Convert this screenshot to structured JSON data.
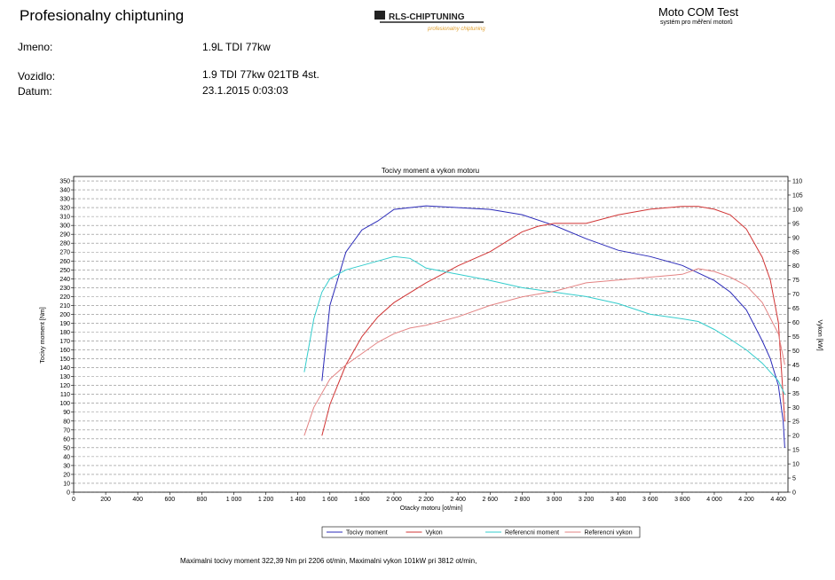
{
  "header": {
    "title": "Profesionalny chiptuning",
    "logo": "RLS-CHIPTUNING",
    "logo_sub": "profesionalny chiptuning",
    "brand": "Moto COM Test",
    "brand_sub": "systém pro měření motorů"
  },
  "fields": [
    {
      "label": "Jmeno:",
      "value": "1.9L TDI 77kw"
    },
    {
      "label": "Vozidlo:",
      "value": "1.9 TDI 77kw 021TB 4st."
    },
    {
      "label": "Datum:",
      "value": "23.1.2015 0:03:03"
    }
  ],
  "chart_data": {
    "type": "line",
    "title": "Tocivy moment a vykon motoru",
    "x_label": "Otacky motoru [ot/min]",
    "y_label": "Tocivy moment [Nm]",
    "y2_label": "Vykon [kW]",
    "xlim": [
      0,
      4460
    ],
    "xticks": [
      0,
      200,
      400,
      600,
      800,
      {
        "value": 1000,
        "label": "1 000"
      },
      {
        "value": 1200,
        "label": "1 200"
      },
      {
        "value": 1400,
        "label": "1 400"
      },
      {
        "value": 1600,
        "label": "1 600"
      },
      {
        "value": 1800,
        "label": "1 800"
      },
      {
        "value": 2000,
        "label": "2 000"
      },
      {
        "value": 2200,
        "label": "2 200"
      },
      {
        "value": 2400,
        "label": "2 400"
      },
      {
        "value": 2600,
        "label": "2 600"
      },
      {
        "value": 2800,
        "label": "2 800"
      },
      {
        "value": 3000,
        "label": "3 000"
      },
      {
        "value": 3200,
        "label": "3 200"
      },
      {
        "value": 3400,
        "label": "3 400"
      },
      {
        "value": 3600,
        "label": "3 600"
      },
      {
        "value": 3800,
        "label": "3 800"
      },
      {
        "value": 4000,
        "label": "4 000"
      },
      {
        "value": 4200,
        "label": "4 200"
      },
      {
        "value": 4400,
        "label": "4 400"
      }
    ],
    "ylim": [
      0,
      355
    ],
    "yticks": [
      0,
      10,
      20,
      30,
      40,
      50,
      60,
      70,
      80,
      90,
      100,
      110,
      120,
      130,
      140,
      150,
      160,
      170,
      180,
      190,
      200,
      210,
      220,
      230,
      240,
      250,
      260,
      270,
      280,
      290,
      300,
      310,
      320,
      330,
      340,
      350
    ],
    "y2lim": [
      0,
      111.57
    ],
    "y2ticks": [
      0,
      5,
      10,
      15,
      20,
      25,
      30,
      35,
      40,
      45,
      50,
      55,
      60,
      65,
      70,
      75,
      80,
      85,
      90,
      95,
      100,
      105,
      110
    ],
    "grid": true,
    "legend": "bottom",
    "series": [
      {
        "name": "Tocivy moment",
        "color": "#2a2ab8",
        "x": [
          1550,
          1600,
          1700,
          1800,
          1900,
          2000,
          2100,
          2200,
          2400,
          2600,
          2800,
          3000,
          3200,
          3400,
          3600,
          3800,
          4000,
          4100,
          4200,
          4300,
          4350,
          4400,
          4430,
          4440
        ],
        "values": [
          125,
          210,
          270,
          295,
          305,
          318,
          320,
          322,
          320,
          318,
          312,
          300,
          285,
          272,
          265,
          255,
          238,
          225,
          205,
          170,
          150,
          120,
          80,
          50
        ]
      },
      {
        "name": "Vykon",
        "color": "#d03434",
        "axis": "y2",
        "x": [
          1550,
          1600,
          1700,
          1800,
          1900,
          2000,
          2200,
          2400,
          2600,
          2800,
          2900,
          3000,
          3200,
          3400,
          3600,
          3800,
          3900,
          4000,
          4100,
          4200,
          4300,
          4350,
          4400,
          4440
        ],
        "values": [
          20,
          31,
          45,
          55,
          62,
          67,
          74,
          80,
          85,
          92,
          94,
          95,
          95,
          98,
          100,
          101,
          101,
          100,
          98,
          93,
          83,
          75,
          60,
          25
        ]
      },
      {
        "name": "Referencni moment",
        "color": "#33cccc",
        "x": [
          1440,
          1500,
          1550,
          1600,
          1700,
          1800,
          1900,
          2000,
          2100,
          2200,
          2400,
          2600,
          2800,
          3000,
          3200,
          3400,
          3600,
          3800,
          3900,
          4000,
          4100,
          4200,
          4300,
          4400,
          4440
        ],
        "values": [
          135,
          195,
          225,
          240,
          250,
          255,
          260,
          265,
          263,
          252,
          245,
          238,
          230,
          225,
          220,
          212,
          200,
          195,
          192,
          183,
          172,
          160,
          145,
          125,
          110
        ]
      },
      {
        "name": "Referencni vykon",
        "color": "#e38383",
        "axis": "y2",
        "x": [
          1440,
          1500,
          1600,
          1700,
          1800,
          1900,
          2000,
          2100,
          2200,
          2400,
          2600,
          2800,
          3000,
          3200,
          3400,
          3600,
          3800,
          3900,
          4000,
          4100,
          4200,
          4300,
          4400,
          4440
        ],
        "values": [
          20,
          30,
          40,
          45,
          49,
          53,
          56,
          58,
          59,
          62,
          66,
          69,
          71,
          74,
          75,
          76,
          77,
          79,
          78,
          76,
          73,
          67,
          56,
          45
        ]
      }
    ]
  },
  "footer": "Maximalni tocivy moment 322,39 Nm pri 2206 ot/min,  Maximalni vykon 101kW pri 3812 ot/min,"
}
